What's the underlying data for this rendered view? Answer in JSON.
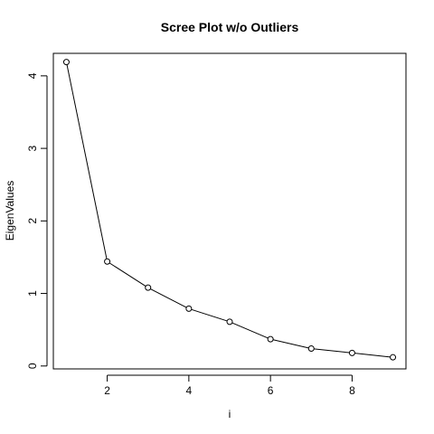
{
  "chart_data": {
    "type": "line",
    "title": "Scree Plot w/o Outliers",
    "xlabel": "i",
    "ylabel": "EigenValues",
    "x": [
      1,
      2,
      3,
      4,
      5,
      6,
      7,
      8,
      9
    ],
    "series": [
      {
        "values": [
          4.19,
          1.44,
          1.08,
          0.79,
          0.61,
          0.37,
          0.24,
          0.18,
          0.12
        ]
      }
    ],
    "xlim": [
      0.68,
      9.32
    ],
    "ylim": [
      -0.04,
      4.31
    ],
    "xticks": [
      2,
      4,
      6,
      8
    ],
    "yticks": [
      0,
      1,
      2,
      3,
      4
    ],
    "marker": "open-circle",
    "grid": false,
    "legend": "none",
    "colors": {
      "line": "#000000",
      "background": "#ffffff"
    }
  }
}
